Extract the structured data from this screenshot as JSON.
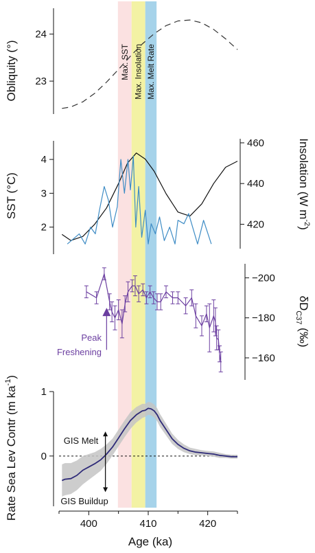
{
  "chart_data": {
    "type": "line",
    "x_axis": {
      "label": "Age (ka)",
      "range": [
        395,
        425
      ],
      "ticks": [
        400,
        410,
        420
      ]
    },
    "bands": [
      {
        "label": "Max. SST",
        "x_from": 404.9,
        "x_to": 407.2,
        "color": "#fbe1e1"
      },
      {
        "label": "Max. Insolation",
        "x_from": 407.2,
        "x_to": 409.5,
        "color": "#f3f2a4"
      },
      {
        "label": "Max. Melt Rate",
        "x_from": 409.5,
        "x_to": 411.4,
        "color": "#a6d3ea"
      }
    ],
    "panels": [
      {
        "key": "obliquity",
        "ylabel": "Obliquity (°)",
        "axis_side": "left",
        "ylim": [
          22.3,
          24.55
        ],
        "ticks": [
          23,
          24
        ],
        "series": [
          {
            "style": "dashed",
            "color": "#333333",
            "x": [
              395.5,
              397,
              399,
              401,
              403,
              405,
              407,
              409,
              411,
              413,
              415,
              417,
              419,
              421,
              423,
              425
            ],
            "y": [
              22.42,
              22.45,
              22.56,
              22.74,
              22.98,
              23.25,
              23.53,
              23.79,
              24.01,
              24.18,
              24.28,
              24.3,
              24.24,
              24.1,
              23.9,
              23.67
            ]
          }
        ]
      },
      {
        "key": "insolation",
        "ylabel": "Insolation (W m-2)",
        "ylabel_main": "Insolation (W m",
        "ylabel_sup": "-2",
        "ylabel_end": ")",
        "axis_side": "right",
        "ylim": [
          408,
          462
        ],
        "ticks": [
          420,
          440,
          460
        ],
        "series": [
          {
            "style": "solid",
            "color": "#111111",
            "x": [
              395.5,
              397,
              399,
              401,
              403,
              405,
              406.5,
              408,
              409.5,
              411,
              413,
              415,
              417,
              419,
              421,
              423,
              425
            ],
            "y": [
              415,
              412,
              414,
              420,
              428,
              440,
              450,
              455,
              452,
              446,
              435,
              426,
              424,
              430,
              440,
              448,
              451
            ]
          }
        ]
      },
      {
        "key": "sst",
        "ylabel": "SST (°C)",
        "axis_side": "left",
        "ylim": [
          1.2,
          4.55
        ],
        "ticks": [
          2,
          3,
          4
        ],
        "series": [
          {
            "style": "solid",
            "color": "#3e8cc5",
            "x": [
              396.4,
              398.4,
              399.4,
              400.3,
              401.1,
              401.8,
              402.6,
              403.3,
              404.0,
              404.8,
              405.4,
              406.0,
              406.6,
              407.0,
              407.5,
              407.9,
              408.4,
              408.9,
              409.5,
              410.0,
              410.5,
              411.2,
              411.9,
              412.7,
              413.6,
              414.5,
              415.0,
              416.0,
              416.8,
              418.3,
              419.3,
              420.6
            ],
            "y": [
              1.5,
              1.8,
              1.5,
              2.0,
              1.8,
              2.5,
              3.2,
              2.8,
              2.0,
              2.6,
              4.0,
              3.0,
              4.0,
              3.1,
              4.1,
              2.0,
              3.2,
              1.7,
              2.5,
              1.5,
              2.1,
              1.8,
              2.3,
              1.6,
              2.0,
              1.5,
              2.2,
              2.1,
              2.4,
              1.5,
              2.2,
              1.5
            ]
          }
        ]
      },
      {
        "key": "dD",
        "ylabel": "δDC37 (‰)",
        "ylabel_main": "δD",
        "ylabel_sub": "C37",
        "ylabel_end": " (‰)",
        "axis_side": "right",
        "ylim": [
          -207,
          -149
        ],
        "ylim_note": "reversed",
        "ticks": [
          -200,
          -180,
          -160
        ],
        "series": [
          {
            "style": "solid_errorbars",
            "color": "#6b3ea0",
            "x": [
              399.6,
              401.3,
              402.6,
              403.5,
              403.9,
              404.4,
              405.0,
              405.6,
              406.1,
              406.6,
              407.3,
              407.8,
              408.4,
              409.1,
              409.7,
              410.3,
              410.9,
              411.5,
              412.1,
              413.0,
              414.1,
              415.0,
              416.3,
              417.3,
              418.0,
              419.0,
              419.8,
              420.3,
              421.0,
              421.3,
              421.5,
              421.8,
              422.0,
              422.2
            ],
            "y": [
              -193,
              -190,
              -202,
              -188,
              -183,
              -180,
              -184,
              -177,
              -187,
              -193,
              -196,
              -196,
              -192,
              -194,
              -190,
              -193,
              -190,
              -188,
              -188,
              -193,
              -190,
              -190,
              -186,
              -190,
              -181,
              -176,
              -182,
              -175,
              -181,
              -178,
              -170,
              -169,
              -162,
              -158
            ],
            "err": [
              3,
              3,
              3,
              4,
              5,
              6,
              5,
              7,
              4,
              5,
              3,
              5,
              4,
              3,
              3,
              3,
              3,
              4,
              4,
              3,
              3,
              3,
              4,
              4,
              6,
              5,
              4,
              12,
              8,
              7,
              6,
              5,
              4,
              5
            ]
          }
        ],
        "annotation": {
          "lines": [
            "Peak",
            "Freshening"
          ],
          "arrow_x": 403.0,
          "arrow_from_y": -164,
          "arrow_to_y": -185
        }
      },
      {
        "key": "melt",
        "ylabel": "Rate Sea Lev Contr (m ka-1)",
        "ylabel_main": "Rate Sea Lev Contr (m ka",
        "ylabel_sup": "-1",
        "ylabel_end": ")",
        "axis_side": "left",
        "ylim": [
          -0.78,
          1.0
        ],
        "ticks": [
          0,
          1
        ],
        "zero_line": true,
        "series": [
          {
            "style": "solid_with_band",
            "color": "#2e2a78",
            "band_color": "#c4c4c4",
            "x": [
              395.5,
              396,
              397,
              398,
              399,
              400,
              401,
              402,
              403,
              404,
              405,
              406,
              407,
              408,
              409,
              409.5,
              410,
              410.5,
              411,
              411.5,
              412,
              413,
              414,
              415,
              416,
              417,
              418,
              419,
              420,
              421,
              422,
              423,
              424,
              425
            ],
            "y": [
              -0.38,
              -0.36,
              -0.35,
              -0.3,
              -0.22,
              -0.17,
              -0.12,
              -0.06,
              0.03,
              0.14,
              0.28,
              0.42,
              0.55,
              0.64,
              0.7,
              0.71,
              0.74,
              0.73,
              0.7,
              0.64,
              0.55,
              0.41,
              0.27,
              0.18,
              0.12,
              0.08,
              0.06,
              0.05,
              0.04,
              0.03,
              0.01,
              0.0,
              -0.01,
              -0.01
            ],
            "band_width": [
              0.25,
              0.25,
              0.24,
              0.23,
              0.22,
              0.2,
              0.18,
              0.17,
              0.15,
              0.13,
              0.13,
              0.13,
              0.13,
              0.12,
              0.11,
              0.1,
              0.1,
              0.1,
              0.1,
              0.1,
              0.1,
              0.09,
              0.08,
              0.07,
              0.06,
              0.05,
              0.05,
              0.04,
              0.04,
              0.04,
              0.04,
              0.03,
              0.03,
              0.03
            ]
          }
        ],
        "annotation": {
          "top": "GIS Melt",
          "bottom": "GIS Buildup",
          "arrow_x": 402.8,
          "arrow_from_y": 0.38,
          "arrow_to_y": -0.56
        }
      }
    ]
  }
}
